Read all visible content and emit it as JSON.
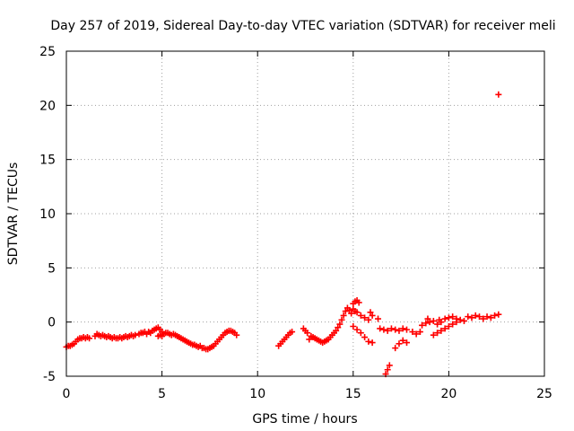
{
  "chart_data": {
    "type": "scatter",
    "title": "Day 257 of 2019, Sidereal Day-to-day VTEC variation (SDTVAR) for receiver meli",
    "xlabel": "GPS time / hours",
    "ylabel": "SDTVAR / TECUs",
    "xlim": [
      0,
      25
    ],
    "ylim": [
      -5,
      25
    ],
    "xticks": [
      "0",
      "5",
      "10",
      "15",
      "20",
      "25"
    ],
    "yticks": [
      "-5",
      "0",
      "5",
      "10",
      "15",
      "20",
      "25"
    ],
    "grid": true,
    "marker": "plus",
    "color": "#ff0000",
    "series": [
      {
        "name": "SDTVAR",
        "points": [
          [
            0.0,
            -2.3
          ],
          [
            0.1,
            -2.2
          ],
          [
            0.2,
            -2.2
          ],
          [
            0.3,
            -2.1
          ],
          [
            0.4,
            -2.0
          ],
          [
            0.5,
            -1.8
          ],
          [
            0.6,
            -1.6
          ],
          [
            0.7,
            -1.5
          ],
          [
            0.8,
            -1.5
          ],
          [
            0.9,
            -1.4
          ],
          [
            1.0,
            -1.5
          ],
          [
            1.1,
            -1.4
          ],
          [
            1.2,
            -1.5
          ],
          [
            1.5,
            -1.3
          ],
          [
            1.6,
            -1.1
          ],
          [
            1.7,
            -1.2
          ],
          [
            1.8,
            -1.3
          ],
          [
            1.9,
            -1.2
          ],
          [
            2.0,
            -1.3
          ],
          [
            2.1,
            -1.4
          ],
          [
            2.2,
            -1.3
          ],
          [
            2.3,
            -1.4
          ],
          [
            2.4,
            -1.5
          ],
          [
            2.5,
            -1.4
          ],
          [
            2.6,
            -1.5
          ],
          [
            2.7,
            -1.5
          ],
          [
            2.8,
            -1.4
          ],
          [
            2.9,
            -1.5
          ],
          [
            3.0,
            -1.4
          ],
          [
            3.1,
            -1.3
          ],
          [
            3.2,
            -1.4
          ],
          [
            3.3,
            -1.3
          ],
          [
            3.4,
            -1.2
          ],
          [
            3.5,
            -1.3
          ],
          [
            3.6,
            -1.2
          ],
          [
            3.8,
            -1.1
          ],
          [
            3.9,
            -1.0
          ],
          [
            4.0,
            -1.0
          ],
          [
            4.1,
            -0.9
          ],
          [
            4.2,
            -1.1
          ],
          [
            4.3,
            -0.9
          ],
          [
            4.4,
            -1.0
          ],
          [
            4.5,
            -0.8
          ],
          [
            4.6,
            -0.7
          ],
          [
            4.7,
            -0.6
          ],
          [
            4.8,
            -0.5
          ],
          [
            4.9,
            -0.7
          ],
          [
            5.0,
            -0.9
          ],
          [
            4.8,
            -1.3
          ],
          [
            4.9,
            -1.2
          ],
          [
            5.0,
            -1.3
          ],
          [
            5.1,
            -1.1
          ],
          [
            5.2,
            -1.0
          ],
          [
            5.3,
            -1.0
          ],
          [
            5.4,
            -1.1
          ],
          [
            5.5,
            -1.2
          ],
          [
            5.6,
            -1.1
          ],
          [
            5.7,
            -1.2
          ],
          [
            5.8,
            -1.3
          ],
          [
            5.9,
            -1.4
          ],
          [
            6.0,
            -1.5
          ],
          [
            6.1,
            -1.6
          ],
          [
            6.2,
            -1.7
          ],
          [
            6.3,
            -1.8
          ],
          [
            6.4,
            -1.9
          ],
          [
            6.5,
            -2.0
          ],
          [
            6.6,
            -2.1
          ],
          [
            6.7,
            -2.1
          ],
          [
            6.8,
            -2.2
          ],
          [
            6.9,
            -2.3
          ],
          [
            7.0,
            -2.2
          ],
          [
            7.1,
            -2.4
          ],
          [
            7.2,
            -2.4
          ],
          [
            7.3,
            -2.5
          ],
          [
            7.4,
            -2.5
          ],
          [
            7.5,
            -2.4
          ],
          [
            7.6,
            -2.3
          ],
          [
            7.7,
            -2.2
          ],
          [
            7.8,
            -2.0
          ],
          [
            7.9,
            -1.8
          ],
          [
            8.0,
            -1.6
          ],
          [
            8.1,
            -1.4
          ],
          [
            8.2,
            -1.2
          ],
          [
            8.3,
            -1.0
          ],
          [
            8.4,
            -0.9
          ],
          [
            8.5,
            -0.8
          ],
          [
            8.6,
            -0.8
          ],
          [
            8.7,
            -0.9
          ],
          [
            8.8,
            -1.0
          ],
          [
            8.9,
            -1.2
          ],
          [
            11.1,
            -2.2
          ],
          [
            11.2,
            -2.0
          ],
          [
            11.3,
            -1.8
          ],
          [
            11.4,
            -1.6
          ],
          [
            11.5,
            -1.4
          ],
          [
            11.6,
            -1.2
          ],
          [
            11.7,
            -1.0
          ],
          [
            11.8,
            -0.9
          ],
          [
            12.4,
            -0.6
          ],
          [
            12.5,
            -0.8
          ],
          [
            12.6,
            -1.0
          ],
          [
            12.7,
            -1.6
          ],
          [
            12.8,
            -1.3
          ],
          [
            12.9,
            -1.4
          ],
          [
            13.0,
            -1.5
          ],
          [
            13.1,
            -1.6
          ],
          [
            13.2,
            -1.7
          ],
          [
            13.3,
            -1.8
          ],
          [
            13.4,
            -1.9
          ],
          [
            13.5,
            -1.8
          ],
          [
            13.6,
            -1.7
          ],
          [
            13.7,
            -1.6
          ],
          [
            13.8,
            -1.4
          ],
          [
            13.9,
            -1.2
          ],
          [
            14.0,
            -1.0
          ],
          [
            14.1,
            -0.8
          ],
          [
            14.2,
            -0.5
          ],
          [
            14.3,
            -0.2
          ],
          [
            14.4,
            0.2
          ],
          [
            14.5,
            0.6
          ],
          [
            14.6,
            1.0
          ],
          [
            14.7,
            1.3
          ],
          [
            14.8,
            1.1
          ],
          [
            14.9,
            0.8
          ],
          [
            15.0,
            1.7
          ],
          [
            15.1,
            1.9
          ],
          [
            15.2,
            2.0
          ],
          [
            15.3,
            1.8
          ],
          [
            15.0,
            1.2
          ],
          [
            15.1,
            1.0
          ],
          [
            15.2,
            0.9
          ],
          [
            15.4,
            0.6
          ],
          [
            15.6,
            0.4
          ],
          [
            15.8,
            0.2
          ],
          [
            15.9,
            0.9
          ],
          [
            16.0,
            0.6
          ],
          [
            16.3,
            0.3
          ],
          [
            15.0,
            -0.4
          ],
          [
            15.2,
            -0.7
          ],
          [
            15.4,
            -1.0
          ],
          [
            15.6,
            -1.4
          ],
          [
            15.8,
            -1.8
          ],
          [
            16.0,
            -1.9
          ],
          [
            16.4,
            -0.6
          ],
          [
            16.6,
            -0.7
          ],
          [
            16.8,
            -0.8
          ],
          [
            17.0,
            -0.6
          ],
          [
            17.2,
            -0.7
          ],
          [
            17.4,
            -0.8
          ],
          [
            17.6,
            -0.6
          ],
          [
            17.8,
            -0.7
          ],
          [
            16.7,
            -4.8
          ],
          [
            16.8,
            -4.4
          ],
          [
            16.9,
            -4.0
          ],
          [
            17.2,
            -2.4
          ],
          [
            17.4,
            -2.0
          ],
          [
            17.6,
            -1.7
          ],
          [
            17.8,
            -1.9
          ],
          [
            18.1,
            -0.9
          ],
          [
            18.3,
            -1.1
          ],
          [
            18.5,
            -0.9
          ],
          [
            18.6,
            -0.3
          ],
          [
            18.8,
            -0.1
          ],
          [
            18.9,
            0.3
          ],
          [
            19.0,
            0.0
          ],
          [
            19.2,
            0.1
          ],
          [
            19.4,
            -0.2
          ],
          [
            19.5,
            0.2
          ],
          [
            19.6,
            0.0
          ],
          [
            19.8,
            0.3
          ],
          [
            20.0,
            0.4
          ],
          [
            20.2,
            0.5
          ],
          [
            20.4,
            0.3
          ],
          [
            19.2,
            -1.2
          ],
          [
            19.4,
            -1.0
          ],
          [
            19.6,
            -0.8
          ],
          [
            19.8,
            -0.6
          ],
          [
            20.0,
            -0.4
          ],
          [
            20.2,
            -0.2
          ],
          [
            20.4,
            0.0
          ],
          [
            20.6,
            0.2
          ],
          [
            20.8,
            0.1
          ],
          [
            21.0,
            0.5
          ],
          [
            21.2,
            0.4
          ],
          [
            21.4,
            0.6
          ],
          [
            21.6,
            0.5
          ],
          [
            21.8,
            0.3
          ],
          [
            22.0,
            0.5
          ],
          [
            22.2,
            0.4
          ],
          [
            22.4,
            0.6
          ],
          [
            22.6,
            0.7
          ],
          [
            22.6,
            21.0
          ]
        ]
      }
    ]
  }
}
